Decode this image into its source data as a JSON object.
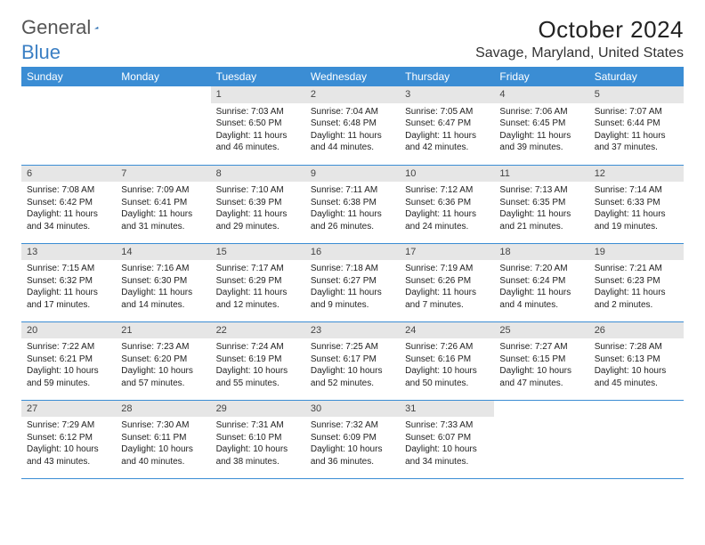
{
  "logo": {
    "general": "General",
    "blue": "Blue"
  },
  "title": "October 2024",
  "location": "Savage, Maryland, United States",
  "colors": {
    "header_bg": "#3b8dd4",
    "header_text": "#ffffff",
    "daynum_bg": "#e6e6e6",
    "border": "#3b8dd4",
    "logo_general": "#555555",
    "logo_blue": "#3b7fc4",
    "body_bg": "#ffffff",
    "text": "#222222"
  },
  "calendar": {
    "type": "table",
    "columns": [
      "Sunday",
      "Monday",
      "Tuesday",
      "Wednesday",
      "Thursday",
      "Friday",
      "Saturday"
    ],
    "font_size_header": 12,
    "font_size_cell": 10,
    "weeks": [
      [
        null,
        null,
        {
          "n": "1",
          "r": "7:03 AM",
          "s": "6:50 PM",
          "dh": "11",
          "dm": "46"
        },
        {
          "n": "2",
          "r": "7:04 AM",
          "s": "6:48 PM",
          "dh": "11",
          "dm": "44"
        },
        {
          "n": "3",
          "r": "7:05 AM",
          "s": "6:47 PM",
          "dh": "11",
          "dm": "42"
        },
        {
          "n": "4",
          "r": "7:06 AM",
          "s": "6:45 PM",
          "dh": "11",
          "dm": "39"
        },
        {
          "n": "5",
          "r": "7:07 AM",
          "s": "6:44 PM",
          "dh": "11",
          "dm": "37"
        }
      ],
      [
        {
          "n": "6",
          "r": "7:08 AM",
          "s": "6:42 PM",
          "dh": "11",
          "dm": "34"
        },
        {
          "n": "7",
          "r": "7:09 AM",
          "s": "6:41 PM",
          "dh": "11",
          "dm": "31"
        },
        {
          "n": "8",
          "r": "7:10 AM",
          "s": "6:39 PM",
          "dh": "11",
          "dm": "29"
        },
        {
          "n": "9",
          "r": "7:11 AM",
          "s": "6:38 PM",
          "dh": "11",
          "dm": "26"
        },
        {
          "n": "10",
          "r": "7:12 AM",
          "s": "6:36 PM",
          "dh": "11",
          "dm": "24"
        },
        {
          "n": "11",
          "r": "7:13 AM",
          "s": "6:35 PM",
          "dh": "11",
          "dm": "21"
        },
        {
          "n": "12",
          "r": "7:14 AM",
          "s": "6:33 PM",
          "dh": "11",
          "dm": "19"
        }
      ],
      [
        {
          "n": "13",
          "r": "7:15 AM",
          "s": "6:32 PM",
          "dh": "11",
          "dm": "17"
        },
        {
          "n": "14",
          "r": "7:16 AM",
          "s": "6:30 PM",
          "dh": "11",
          "dm": "14"
        },
        {
          "n": "15",
          "r": "7:17 AM",
          "s": "6:29 PM",
          "dh": "11",
          "dm": "12"
        },
        {
          "n": "16",
          "r": "7:18 AM",
          "s": "6:27 PM",
          "dh": "11",
          "dm": "9"
        },
        {
          "n": "17",
          "r": "7:19 AM",
          "s": "6:26 PM",
          "dh": "11",
          "dm": "7"
        },
        {
          "n": "18",
          "r": "7:20 AM",
          "s": "6:24 PM",
          "dh": "11",
          "dm": "4"
        },
        {
          "n": "19",
          "r": "7:21 AM",
          "s": "6:23 PM",
          "dh": "11",
          "dm": "2"
        }
      ],
      [
        {
          "n": "20",
          "r": "7:22 AM",
          "s": "6:21 PM",
          "dh": "10",
          "dm": "59"
        },
        {
          "n": "21",
          "r": "7:23 AM",
          "s": "6:20 PM",
          "dh": "10",
          "dm": "57"
        },
        {
          "n": "22",
          "r": "7:24 AM",
          "s": "6:19 PM",
          "dh": "10",
          "dm": "55"
        },
        {
          "n": "23",
          "r": "7:25 AM",
          "s": "6:17 PM",
          "dh": "10",
          "dm": "52"
        },
        {
          "n": "24",
          "r": "7:26 AM",
          "s": "6:16 PM",
          "dh": "10",
          "dm": "50"
        },
        {
          "n": "25",
          "r": "7:27 AM",
          "s": "6:15 PM",
          "dh": "10",
          "dm": "47"
        },
        {
          "n": "26",
          "r": "7:28 AM",
          "s": "6:13 PM",
          "dh": "10",
          "dm": "45"
        }
      ],
      [
        {
          "n": "27",
          "r": "7:29 AM",
          "s": "6:12 PM",
          "dh": "10",
          "dm": "43"
        },
        {
          "n": "28",
          "r": "7:30 AM",
          "s": "6:11 PM",
          "dh": "10",
          "dm": "40"
        },
        {
          "n": "29",
          "r": "7:31 AM",
          "s": "6:10 PM",
          "dh": "10",
          "dm": "38"
        },
        {
          "n": "30",
          "r": "7:32 AM",
          "s": "6:09 PM",
          "dh": "10",
          "dm": "36"
        },
        {
          "n": "31",
          "r": "7:33 AM",
          "s": "6:07 PM",
          "dh": "10",
          "dm": "34"
        },
        null,
        null
      ]
    ]
  }
}
